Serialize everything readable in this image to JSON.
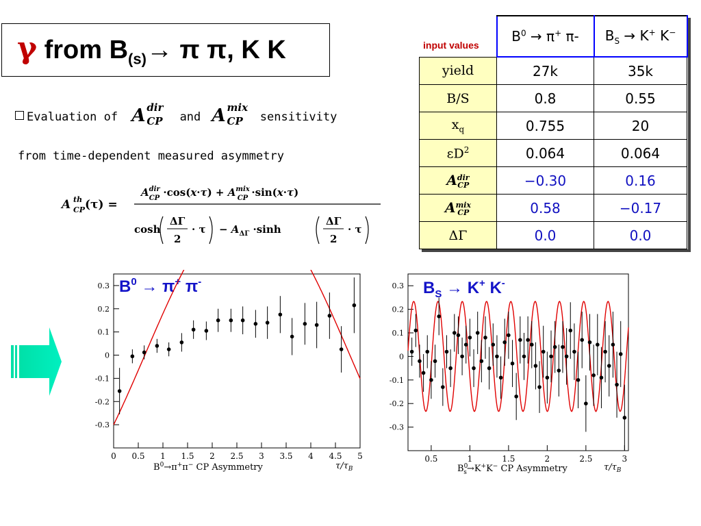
{
  "title": {
    "gamma": "γ",
    "from": " from B",
    "sub": "(s)",
    "rest": "→ π π, K K"
  },
  "bullet": {
    "text1": "Evaluation of",
    "and": "and",
    "sensitivity": "sensitivity",
    "line2": "from time-dependent measured asymmetry"
  },
  "acp": {
    "A": "A",
    "dir": "dir",
    "mix": "mix",
    "cp": "CP"
  },
  "formula": {
    "lhs": "A",
    "lhs_sup": "th",
    "lhs_sub": "CP",
    "lhs_arg": "(τ) =",
    "numerator": "A·cos(x·τ) + A·sin(x·τ)",
    "denominator": "cosh(ΔΓ/2·τ) − A·sinh(ΔΓ/2·τ)"
  },
  "table": {
    "input_label": "input values",
    "headers": [
      "B⁰ → π⁺ π-",
      "B_S → K⁺ K⁻"
    ],
    "rows": [
      {
        "label": "yield",
        "v1": "27k",
        "v2": "35k",
        "blue": false
      },
      {
        "label": "B/S",
        "v1": "0.8",
        "v2": "0.55",
        "blue": false
      },
      {
        "label": "x_q",
        "v1": "0.755",
        "v2": "20",
        "blue": false
      },
      {
        "label": "εD²",
        "v1": "0.064",
        "v2": "0.064",
        "blue": false
      },
      {
        "label": "A_CP^dir",
        "v1": "−0.30",
        "v2": "0.16",
        "blue": true
      },
      {
        "label": "A_CP^mix",
        "v1": "0.58",
        "v2": "−0.17",
        "blue": true
      },
      {
        "label": "ΔΓ",
        "v1": "0.0",
        "v2": "0.0",
        "blue": true
      }
    ]
  },
  "colors": {
    "accent_red": "#c00000",
    "arrow": "#00e0a0",
    "table_head": "#ffffc0",
    "fit_line": "#e00000",
    "plot_title": "#1414c8"
  },
  "chart_data": [
    {
      "type": "scatter",
      "title": "B⁰ → π⁺ π⁻",
      "xlabel": "B⁰→π⁺π⁻ CP Asymmetry",
      "xunit": "τ/τ_B",
      "xlim": [
        0,
        5
      ],
      "ylim": [
        -0.4,
        0.35
      ],
      "yticks": [
        "0.3",
        "0.2",
        "0.1",
        "0",
        "-0.1",
        "-0.2",
        "-0.3"
      ],
      "xticks": [
        "0",
        "0.5",
        "1",
        "1.5",
        "2",
        "2.5",
        "3",
        "3.5",
        "4",
        "4.5",
        "5"
      ],
      "points": [
        {
          "x": 0.12,
          "y": -0.155,
          "e": 0.1
        },
        {
          "x": 0.38,
          "y": -0.005,
          "e": 0.03
        },
        {
          "x": 0.62,
          "y": 0.012,
          "e": 0.03
        },
        {
          "x": 0.88,
          "y": 0.04,
          "e": 0.03
        },
        {
          "x": 1.12,
          "y": 0.025,
          "e": 0.03
        },
        {
          "x": 1.38,
          "y": 0.055,
          "e": 0.04
        },
        {
          "x": 1.62,
          "y": 0.11,
          "e": 0.04
        },
        {
          "x": 1.88,
          "y": 0.105,
          "e": 0.04
        },
        {
          "x": 2.12,
          "y": 0.15,
          "e": 0.05
        },
        {
          "x": 2.38,
          "y": 0.15,
          "e": 0.05
        },
        {
          "x": 2.62,
          "y": 0.15,
          "e": 0.06
        },
        {
          "x": 2.88,
          "y": 0.135,
          "e": 0.06
        },
        {
          "x": 3.12,
          "y": 0.14,
          "e": 0.07
        },
        {
          "x": 3.38,
          "y": 0.175,
          "e": 0.08
        },
        {
          "x": 3.62,
          "y": 0.08,
          "e": 0.08
        },
        {
          "x": 3.88,
          "y": 0.135,
          "e": 0.09
        },
        {
          "x": 4.12,
          "y": 0.13,
          "e": 0.1
        },
        {
          "x": 4.38,
          "y": 0.17,
          "e": 0.1
        },
        {
          "x": 4.62,
          "y": 0.025,
          "e": 0.1
        },
        {
          "x": 4.88,
          "y": 0.215,
          "e": 0.12
        }
      ],
      "fit": {
        "dir": -0.3,
        "mix": 0.58,
        "xq": 0.755
      }
    },
    {
      "type": "scatter",
      "title": "B_S → K⁺ K⁻",
      "xlabel": "B_s⁰→K⁺K⁻ CP Asymmetry",
      "xunit": "τ/τ_B",
      "xlim": [
        0.2,
        3.05
      ],
      "ylim": [
        -0.4,
        0.35
      ],
      "yticks": [
        "0.3",
        "0.2",
        "0.1",
        "0",
        "-0.1",
        "-0.2",
        "-0.3"
      ],
      "xticks": [
        "0.5",
        "1",
        "1.5",
        "2",
        "2.5",
        "3"
      ],
      "points": [
        {
          "x": 0.25,
          "y": 0.02,
          "e": 0.06
        },
        {
          "x": 0.3,
          "y": 0.11,
          "e": 0.07
        },
        {
          "x": 0.35,
          "y": -0.02,
          "e": 0.07
        },
        {
          "x": 0.4,
          "y": -0.07,
          "e": 0.08
        },
        {
          "x": 0.45,
          "y": 0.02,
          "e": 0.07
        },
        {
          "x": 0.5,
          "y": -0.1,
          "e": 0.08
        },
        {
          "x": 0.55,
          "y": -0.02,
          "e": 0.07
        },
        {
          "x": 0.6,
          "y": 0.17,
          "e": 0.08
        },
        {
          "x": 0.65,
          "y": -0.13,
          "e": 0.08
        },
        {
          "x": 0.7,
          "y": 0.02,
          "e": 0.07
        },
        {
          "x": 0.75,
          "y": -0.05,
          "e": 0.08
        },
        {
          "x": 0.8,
          "y": 0.1,
          "e": 0.08
        },
        {
          "x": 0.85,
          "y": 0.09,
          "e": 0.08
        },
        {
          "x": 0.9,
          "y": 0.0,
          "e": 0.08
        },
        {
          "x": 0.95,
          "y": 0.05,
          "e": 0.08
        },
        {
          "x": 1.0,
          "y": 0.08,
          "e": 0.08
        },
        {
          "x": 1.05,
          "y": -0.05,
          "e": 0.08
        },
        {
          "x": 1.1,
          "y": 0.1,
          "e": 0.09
        },
        {
          "x": 1.15,
          "y": -0.02,
          "e": 0.09
        },
        {
          "x": 1.2,
          "y": 0.08,
          "e": 0.09
        },
        {
          "x": 1.25,
          "y": -0.05,
          "e": 0.09
        },
        {
          "x": 1.3,
          "y": 0.05,
          "e": 0.09
        },
        {
          "x": 1.35,
          "y": 0.0,
          "e": 0.09
        },
        {
          "x": 1.4,
          "y": -0.09,
          "e": 0.09
        },
        {
          "x": 1.45,
          "y": 0.06,
          "e": 0.1
        },
        {
          "x": 1.5,
          "y": 0.09,
          "e": 0.1
        },
        {
          "x": 1.55,
          "y": -0.03,
          "e": 0.1
        },
        {
          "x": 1.6,
          "y": -0.17,
          "e": 0.1
        },
        {
          "x": 1.65,
          "y": 0.07,
          "e": 0.1
        },
        {
          "x": 1.7,
          "y": 0.0,
          "e": 0.1
        },
        {
          "x": 1.75,
          "y": 0.07,
          "e": 0.1
        },
        {
          "x": 1.8,
          "y": 0.05,
          "e": 0.1
        },
        {
          "x": 1.85,
          "y": -0.04,
          "e": 0.1
        },
        {
          "x": 1.9,
          "y": -0.13,
          "e": 0.11
        },
        {
          "x": 1.95,
          "y": 0.02,
          "e": 0.11
        },
        {
          "x": 2.0,
          "y": -0.09,
          "e": 0.11
        },
        {
          "x": 2.05,
          "y": 0.0,
          "e": 0.11
        },
        {
          "x": 2.1,
          "y": 0.04,
          "e": 0.11
        },
        {
          "x": 2.15,
          "y": -0.06,
          "e": 0.11
        },
        {
          "x": 2.2,
          "y": 0.04,
          "e": 0.11
        },
        {
          "x": 2.25,
          "y": 0.0,
          "e": 0.12
        },
        {
          "x": 2.3,
          "y": 0.11,
          "e": 0.12
        },
        {
          "x": 2.35,
          "y": 0.02,
          "e": 0.12
        },
        {
          "x": 2.4,
          "y": -0.1,
          "e": 0.12
        },
        {
          "x": 2.45,
          "y": 0.07,
          "e": 0.12
        },
        {
          "x": 2.5,
          "y": -0.2,
          "e": 0.12
        },
        {
          "x": 2.55,
          "y": 0.06,
          "e": 0.12
        },
        {
          "x": 2.6,
          "y": -0.08,
          "e": 0.13
        },
        {
          "x": 2.65,
          "y": 0.05,
          "e": 0.13
        },
        {
          "x": 2.7,
          "y": -0.09,
          "e": 0.13
        },
        {
          "x": 2.75,
          "y": 0.02,
          "e": 0.13
        },
        {
          "x": 2.8,
          "y": -0.04,
          "e": 0.13
        },
        {
          "x": 2.85,
          "y": 0.05,
          "e": 0.14
        },
        {
          "x": 2.9,
          "y": -0.12,
          "e": 0.14
        },
        {
          "x": 2.95,
          "y": 0.01,
          "e": 0.14
        },
        {
          "x": 3.0,
          "y": -0.26,
          "e": 0.14
        }
      ],
      "fit": {
        "dir": 0.16,
        "mix": -0.17,
        "xq": 20
      }
    }
  ]
}
